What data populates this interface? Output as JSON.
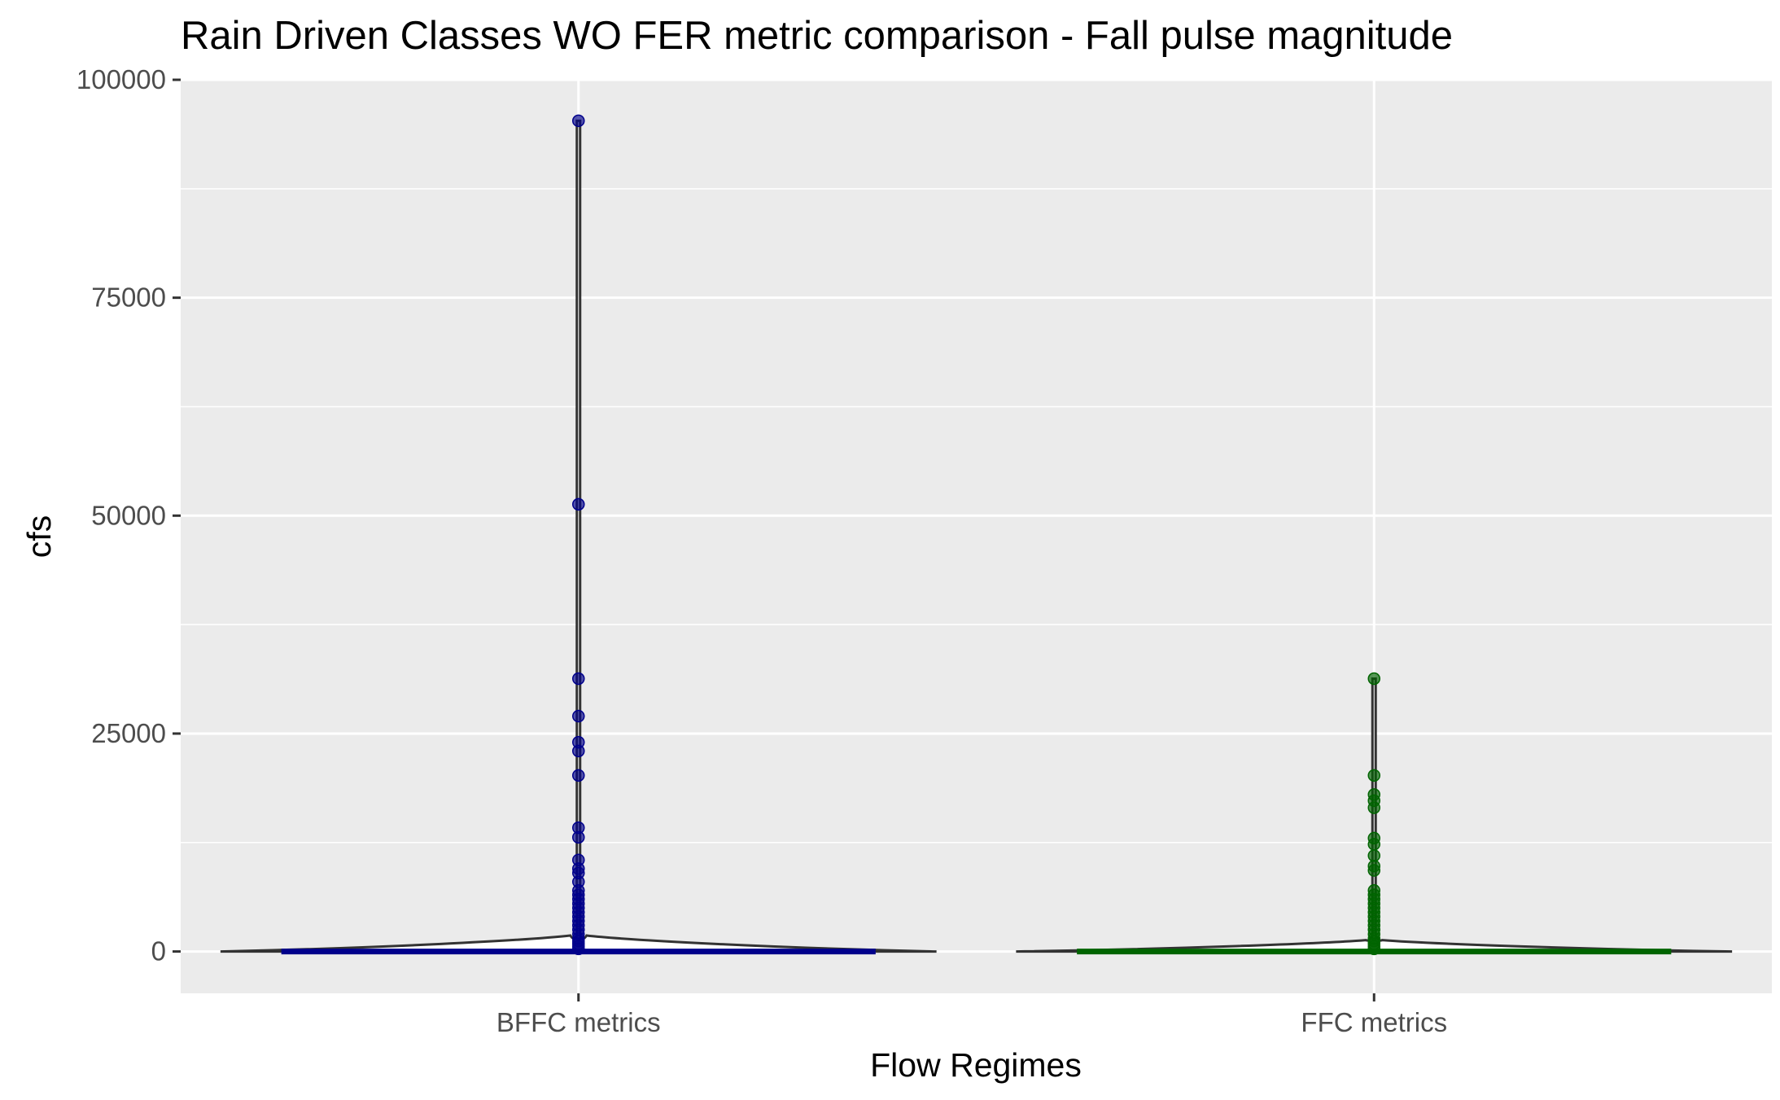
{
  "chart_data": {
    "type": "violin",
    "title": "Rain Driven Classes WO FER metric comparison  - Fall pulse magnitude",
    "xlabel": "Flow Regimes",
    "ylabel": "cfs",
    "ylim": [
      -4800,
      100000
    ],
    "yticks": [
      "0",
      "25000",
      "50000",
      "75000",
      "100000"
    ],
    "ytick_values": [
      0,
      25000,
      50000,
      75000,
      100000
    ],
    "categories": [
      "BFFC metrics",
      "FFC metrics"
    ],
    "grid": true,
    "legend": "none",
    "colors": {
      "panel": "#ebebeb",
      "grid": "#ffffff",
      "violin_outline": "#333333",
      "BFFC metrics": "#00008b",
      "FFC metrics": "#006400"
    },
    "series": [
      {
        "category": "BFFC metrics",
        "color": "#00008b",
        "max": 95300,
        "outliers": [
          95300,
          51300,
          31300,
          27000,
          24000,
          23000,
          20200,
          14200,
          13100,
          10500,
          9500,
          9000,
          8000,
          7000,
          6500,
          6000,
          5500,
          5000,
          4500,
          4000,
          3500,
          3000,
          2500,
          2000,
          1500,
          1200,
          900,
          600,
          300
        ]
      },
      {
        "category": "FFC metrics",
        "color": "#006400",
        "max": 31300,
        "outliers": [
          31300,
          20200,
          18000,
          17300,
          16500,
          13000,
          12300,
          11000,
          9800,
          9300,
          7000,
          6500,
          6000,
          5500,
          5000,
          4500,
          4000,
          3500,
          3000,
          2500,
          2000,
          1500,
          1200,
          900,
          600,
          300
        ]
      }
    ]
  }
}
